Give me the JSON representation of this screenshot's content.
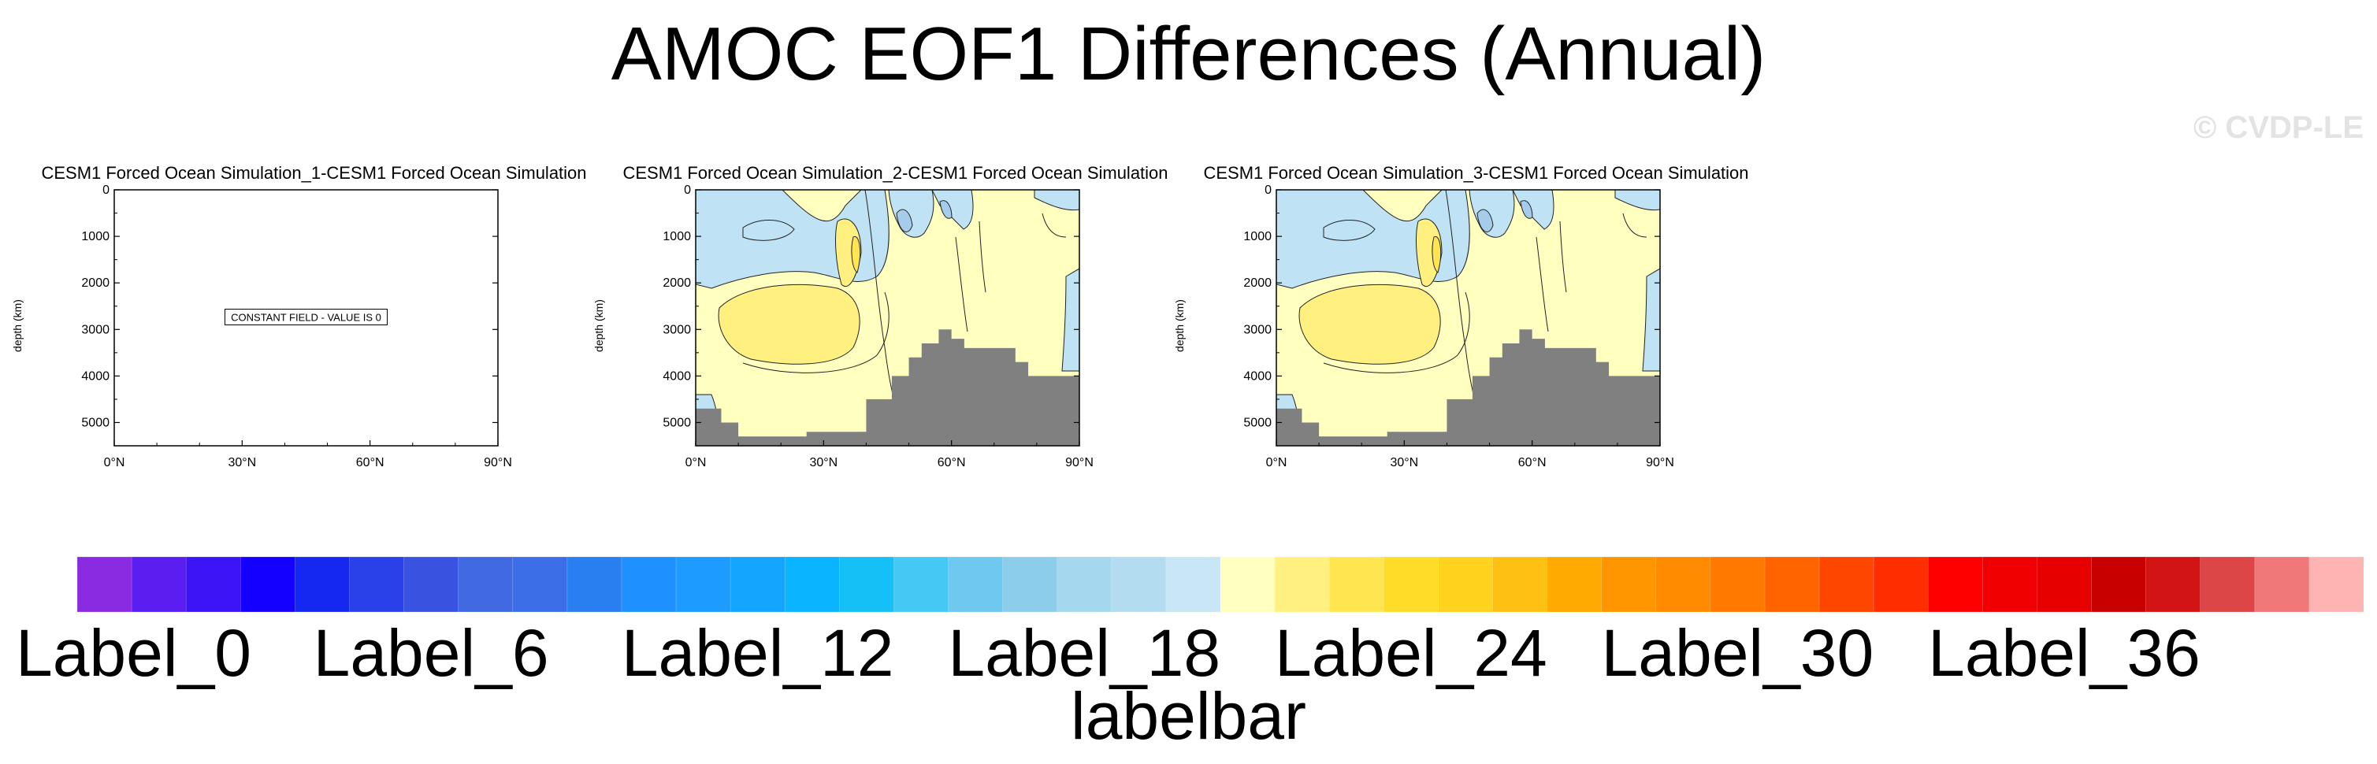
{
  "title": "AMOC EOF1 Differences (Annual)",
  "watermark": "© CVDP-LE",
  "chart_data": [
    {
      "type": "heatmap",
      "title": "CESM1 Forced Ocean Simulation_1-CESM1 Forced Ocean Simulation",
      "ylabel": "depth (km)",
      "x_ticks": [
        "0°N",
        "30°N",
        "60°N",
        "90°N"
      ],
      "y_ticks": [
        "0",
        "1000",
        "2000",
        "3000",
        "4000",
        "5000"
      ],
      "xlim": [
        0,
        90
      ],
      "ylim": [
        5500,
        0
      ],
      "annotation": "CONSTANT FIELD - VALUE IS 0",
      "constant_value": 0,
      "bathymetry": []
    },
    {
      "type": "heatmap",
      "title": "CESM1 Forced Ocean Simulation_2-CESM1 Forced Ocean Simulation",
      "ylabel": "depth (km)",
      "x_ticks": [
        "0°N",
        "30°N",
        "60°N",
        "90°N"
      ],
      "y_ticks": [
        "0",
        "1000",
        "2000",
        "3000",
        "4000",
        "5000"
      ],
      "xlim": [
        0,
        90
      ],
      "ylim": [
        5500,
        0
      ],
      "annotation": "",
      "bathymetry": [
        [
          0,
          4700
        ],
        [
          6,
          4700
        ],
        [
          6,
          5000
        ],
        [
          10,
          5000
        ],
        [
          10,
          5300
        ],
        [
          26,
          5300
        ],
        [
          26,
          5200
        ],
        [
          40,
          5200
        ],
        [
          40,
          4500
        ],
        [
          46,
          4500
        ],
        [
          46,
          4000
        ],
        [
          50,
          4000
        ],
        [
          50,
          3600
        ],
        [
          53,
          3600
        ],
        [
          53,
          3300
        ],
        [
          57,
          3300
        ],
        [
          57,
          3000
        ],
        [
          60,
          3000
        ],
        [
          60,
          3200
        ],
        [
          63,
          3200
        ],
        [
          63,
          3400
        ],
        [
          75,
          3400
        ],
        [
          75,
          3700
        ],
        [
          78,
          3700
        ],
        [
          78,
          4000
        ],
        [
          90,
          4000
        ]
      ]
    },
    {
      "type": "heatmap",
      "title": "CESM1 Forced Ocean Simulation_3-CESM1 Forced Ocean Simulation",
      "ylabel": "depth (km)",
      "x_ticks": [
        "0°N",
        "30°N",
        "60°N",
        "90°N"
      ],
      "y_ticks": [
        "0",
        "1000",
        "2000",
        "3000",
        "4000",
        "5000"
      ],
      "xlim": [
        0,
        90
      ],
      "ylim": [
        5500,
        0
      ],
      "annotation": "",
      "bathymetry": [
        [
          0,
          4700
        ],
        [
          6,
          4700
        ],
        [
          6,
          5000
        ],
        [
          10,
          5000
        ],
        [
          10,
          5300
        ],
        [
          26,
          5300
        ],
        [
          26,
          5200
        ],
        [
          40,
          5200
        ],
        [
          40,
          4500
        ],
        [
          46,
          4500
        ],
        [
          46,
          4000
        ],
        [
          50,
          4000
        ],
        [
          50,
          3600
        ],
        [
          53,
          3600
        ],
        [
          53,
          3300
        ],
        [
          57,
          3300
        ],
        [
          57,
          3000
        ],
        [
          60,
          3000
        ],
        [
          60,
          3200
        ],
        [
          63,
          3200
        ],
        [
          63,
          3400
        ],
        [
          75,
          3400
        ],
        [
          75,
          3700
        ],
        [
          78,
          3700
        ],
        [
          78,
          4000
        ],
        [
          90,
          4000
        ]
      ]
    }
  ],
  "colorbar": {
    "title": "labelbar",
    "labels": [
      "Label_0",
      "Label_6",
      "Label_12",
      "Label_18",
      "Label_24",
      "Label_30",
      "Label_36"
    ],
    "label_indices": [
      0,
      6,
      12,
      18,
      24,
      30,
      36
    ],
    "colors": [
      "#8a2be2",
      "#5a1ef0",
      "#3c14f5",
      "#1400ff",
      "#1428f0",
      "#2a40e8",
      "#3a52e0",
      "#4169e1",
      "#3c6ee8",
      "#2a7ff0",
      "#1e90ff",
      "#1e9bff",
      "#14a5ff",
      "#0ab4ff",
      "#14c0f5",
      "#46c8f5",
      "#6ec8f0",
      "#8ccdeb",
      "#a5d7ee",
      "#b4dcf0",
      "#c8e6f5",
      "#ffffc0",
      "#fff080",
      "#ffe650",
      "#ffdc28",
      "#ffd21e",
      "#ffc014",
      "#ffaa00",
      "#ff9600",
      "#ff8c00",
      "#ff7800",
      "#ff6400",
      "#ff4600",
      "#ff2d00",
      "#ff0000",
      "#f00000",
      "#e60000",
      "#c80000",
      "#d21414",
      "#dc4646",
      "#f07878",
      "#ffb4b4"
    ]
  }
}
